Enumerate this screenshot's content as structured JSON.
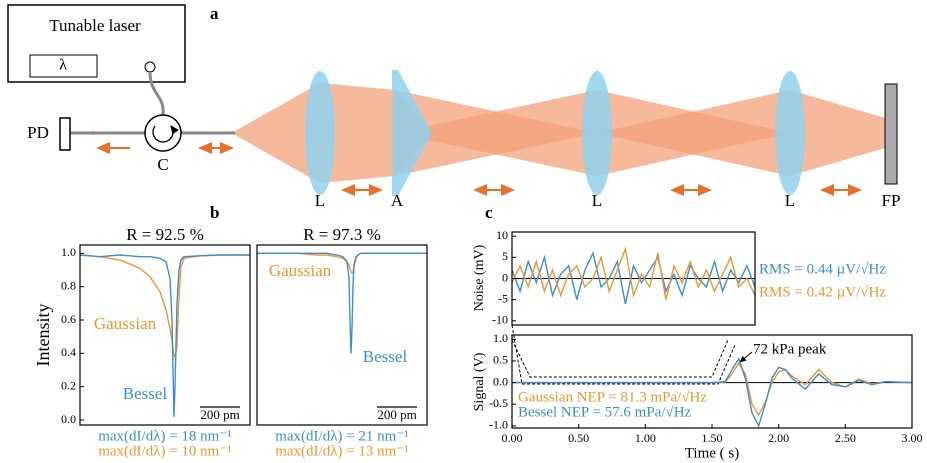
{
  "panel_labels": [
    "a",
    "b",
    "c"
  ],
  "diagram": {
    "laser_label": "Tunable laser",
    "lambda": "λ",
    "labels": [
      "PD",
      "C",
      "L",
      "A",
      "L",
      "L",
      "FP"
    ]
  },
  "chart_data": [
    {
      "type": "line",
      "title": "R = 92.5 %",
      "y_label": "Intensity",
      "x": [
        0,
        100,
        200,
        300,
        350,
        400,
        430,
        450,
        460,
        465,
        470,
        475,
        480,
        485,
        495,
        505,
        520,
        600,
        700,
        850
      ],
      "xlim": [
        0,
        850
      ],
      "ylim": [
        -0.03,
        1.05
      ],
      "yticks": [
        {
          "value": 0,
          "label": "0.0"
        },
        0.2,
        0.4,
        0.6,
        0.8,
        {
          "value": 1,
          "label": "1.0"
        }
      ],
      "series": [
        {
          "name": "Gaussian",
          "color": "#f0962e",
          "values": [
            0.99,
            0.98,
            0.96,
            0.91,
            0.86,
            0.77,
            0.66,
            0.55,
            0.48,
            0.43,
            0.39,
            0.38,
            0.4,
            0.45,
            0.75,
            0.92,
            0.97,
            0.985,
            0.99,
            0.99
          ]
        },
        {
          "name": "Bessel",
          "color": "#3b8fd0",
          "values": [
            0.99,
            0.98,
            0.99,
            0.98,
            0.98,
            0.97,
            0.95,
            0.85,
            0.6,
            0.3,
            0.02,
            0.2,
            0.45,
            0.7,
            0.9,
            0.96,
            0.98,
            0.985,
            0.99,
            0.99
          ]
        }
      ],
      "scale_bar": {
        "length": 200,
        "label": "200 pm"
      },
      "annotations": [
        {
          "text": "max(dI/dλ) = 18 nm⁻¹",
          "color": "#3b8fd0"
        },
        {
          "text": "max(dI/dλ) = 10 nm⁻¹",
          "color": "#f0962e"
        }
      ]
    },
    {
      "type": "line",
      "title": "R = 97.3 %",
      "x": [
        0,
        100,
        200,
        300,
        350,
        400,
        430,
        450,
        460,
        465,
        470,
        475,
        480,
        485,
        495,
        505,
        520,
        600,
        700,
        850
      ],
      "xlim": [
        0,
        850
      ],
      "ylim": [
        -0.03,
        1.05
      ],
      "series": [
        {
          "name": "Gaussian",
          "color": "#f0962e",
          "values": [
            1,
            1,
            1,
            0.99,
            0.99,
            0.98,
            0.97,
            0.95,
            0.93,
            0.91,
            0.89,
            0.88,
            0.89,
            0.92,
            0.97,
            0.99,
            1,
            1,
            1,
            1
          ]
        },
        {
          "name": "Bessel",
          "color": "#3b8fd0",
          "values": [
            1,
            1,
            1,
            1,
            1,
            0.99,
            0.98,
            0.95,
            0.85,
            0.6,
            0.4,
            0.55,
            0.8,
            0.93,
            0.98,
            0.99,
            1,
            1,
            1,
            1
          ]
        }
      ],
      "scale_bar": {
        "length": 200,
        "label": "200 pm"
      },
      "annotations": [
        {
          "text": "max(dI/dλ) = 21 nm⁻¹",
          "color": "#3b8fd0"
        },
        {
          "text": "max(dI/dλ) = 13 nm⁻¹",
          "color": "#f0962e"
        }
      ]
    },
    {
      "type": "line",
      "y_label": "Noise (mV)",
      "x": [
        0,
        0.1,
        0.2,
        0.3,
        0.4,
        0.5,
        0.6,
        0.7,
        0.8,
        0.9,
        1.0,
        1.1,
        1.2,
        1.3,
        1.4,
        1.5,
        1.6,
        1.7,
        1.8,
        1.9,
        2.0,
        2.1,
        2.2,
        2.3,
        2.4,
        2.5,
        2.6,
        2.7,
        2.8,
        2.9,
        3.0
      ],
      "xlim": [
        0,
        3
      ],
      "ylim": [
        -11,
        11
      ],
      "yticks": [
        -10,
        -5,
        0,
        5,
        10
      ],
      "series": [
        {
          "color": "#3b8fd0",
          "values": [
            2,
            -3,
            4,
            -1,
            5,
            -4,
            1,
            3,
            -5,
            2,
            6,
            -2,
            0,
            4,
            -6,
            3,
            -1,
            2,
            5,
            -3,
            1,
            -4,
            3,
            0,
            -2,
            4,
            -3,
            2,
            -1,
            3,
            -2
          ]
        },
        {
          "color": "#f0962e",
          "values": [
            -1,
            3,
            -2,
            4,
            -3,
            2,
            -4,
            1,
            3,
            -2,
            0,
            5,
            -3,
            2,
            7,
            -4,
            1,
            -2,
            6,
            -5,
            3,
            -1,
            4,
            -2,
            2,
            -3,
            1,
            5,
            -2,
            0,
            -4
          ]
        }
      ],
      "annotations": [
        {
          "text": "RMS = 0.44 µV/√Hz",
          "color": "#3b8fd0"
        },
        {
          "text": "RMS = 0.42 µV/√Hz",
          "color": "#f0962e"
        }
      ]
    },
    {
      "type": "line",
      "y_label": "Signal (V)",
      "x_label": "Time (  s)",
      "x": [
        0,
        0.5,
        1.0,
        1.5,
        1.6,
        1.65,
        1.7,
        1.75,
        1.8,
        1.85,
        1.9,
        1.95,
        2.0,
        2.05,
        2.1,
        2.2,
        2.3,
        2.4,
        2.5,
        2.6,
        2.7,
        2.8,
        3.0
      ],
      "xlim": [
        0,
        3
      ],
      "ylim": [
        -1.05,
        1.1
      ],
      "xticks": [
        {
          "value": 0,
          "label": "0.00"
        },
        {
          "value": 0.5,
          "label": "0.50"
        },
        {
          "value": 1,
          "label": "1.00"
        },
        {
          "value": 1.5,
          "label": "1.50"
        },
        {
          "value": 2,
          "label": "2.00"
        },
        {
          "value": 2.5,
          "label": "2.50"
        },
        {
          "value": 3,
          "label": "3.00"
        }
      ],
      "yticks": [
        {
          "value": -1,
          "label": "-1.0"
        },
        -0.5,
        {
          "value": 0,
          "label": "0.0"
        },
        0.5,
        {
          "value": 1,
          "label": "1.0"
        }
      ],
      "series": [
        {
          "color": "#f0962e",
          "values": [
            0,
            0,
            0,
            0,
            0.01,
            0.2,
            0.45,
            0.2,
            -0.5,
            -0.75,
            -0.45,
            0.0,
            0.25,
            0.3,
            0.15,
            -0.05,
            0.3,
            0.0,
            -0.1,
            0.08,
            -0.03,
            0.02,
            0
          ]
        },
        {
          "color": "#3b8fd0",
          "values": [
            0,
            0,
            0,
            0,
            0.02,
            0.3,
            0.55,
            0.1,
            -0.7,
            -1.0,
            -0.5,
            0.1,
            0.35,
            0.3,
            0.1,
            -0.15,
            0.2,
            -0.05,
            -0.1,
            0.05,
            -0.05,
            0.02,
            0
          ]
        }
      ],
      "annotations": [
        {
          "text": "72 kPa peak",
          "color": "#000000"
        },
        {
          "text": "Gaussian NEP = 81.3 mPa/√Hz",
          "color": "#f0962e"
        },
        {
          "text": "Bessel NEP = 57.6 mPa/√Hz",
          "color": "#3b8fd0"
        }
      ]
    }
  ]
}
